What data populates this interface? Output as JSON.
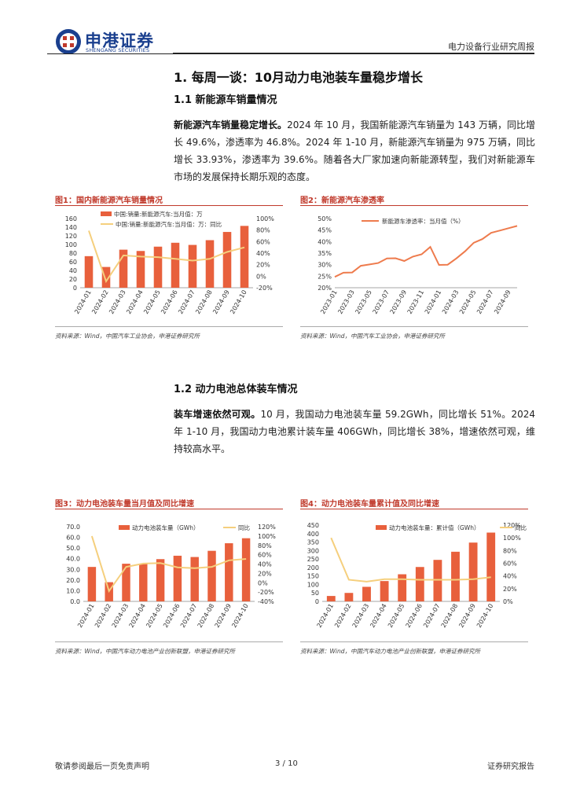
{
  "header": {
    "logo_cn": "申港证券",
    "logo_en": "SHENGANG SECURITIES",
    "report_type": "电力设备行业研究周报"
  },
  "section": {
    "title": "1. 每周一谈：10月动力电池装车量稳步增长",
    "sub1_title": "1.1 新能源车销量情况",
    "sub1_lead": "新能源汽车销量稳定增长。",
    "sub1_body": "2024 年 10 月，我国新能源汽车销量为 143 万辆，同比增长 49.6%，渗透率为 46.8%。2024 年 1-10 月，新能源汽车销量为 975 万辆，同比增长 33.93%，渗透率为 39.6%。随着各大厂家加速向新能源转型，我们对新能源车市场的发展保持长期乐观的态度。",
    "sub2_title": "1.2 动力电池总体装车情况",
    "sub2_lead": "装车增速依然可观。",
    "sub2_body": "10 月，我国动力电池装车量 59.2GWh，同比增长 51%。2024 年 1-10 月，我国动力电池累计装车量 406GWh，同比增长 38%，增速依然可观，维持较高水平。"
  },
  "figures": {
    "fig1": {
      "caption": "图1：国内新能源汽车销量情况",
      "source": "资料来源：Wind，中国汽车工业协会，申港证券研究所"
    },
    "fig2": {
      "caption": "图2：新能源汽车渗透率",
      "source": "资料来源：Wind，中国汽车工业协会，申港证券研究所"
    },
    "fig3": {
      "caption": "图3：动力电池装车量当月值及同比增速",
      "source": "资料来源：Wind，中国汽车动力电池产业创新联盟，申港证券研究所"
    },
    "fig4": {
      "caption": "图4：动力电池装车量累计值及同比增速",
      "source": "资料来源：Wind，中国汽车动力电池产业创新联盟，申港证券研究所"
    }
  },
  "footer": {
    "disclaimer": "敬请参阅最后一页免责声明",
    "page": "3 / 10",
    "doc_type": "证券研究报告"
  },
  "colors": {
    "bar": "#e8603c",
    "line_yellow": "#f5cf7d",
    "line_orange": "#ee7b4d",
    "caption_red": "#c0392b",
    "brand_blue": "#1a3f8e"
  },
  "chart_data": [
    {
      "type": "bar",
      "id": "fig1",
      "categories": [
        "2024-01",
        "2024-02",
        "2024-03",
        "2024-04",
        "2024-05",
        "2024-06",
        "2024-07",
        "2024-08",
        "2024-09",
        "2024-10"
      ],
      "series": [
        {
          "name": "中国:销量:新能源汽车:当月值：万",
          "kind": "bar",
          "axis": "left",
          "values": [
            73,
            48,
            88,
            85,
            95,
            104,
            99,
            110,
            129,
            143
          ]
        },
        {
          "name": "中国:销量:新能源汽车:当月值：万：同比",
          "kind": "line",
          "axis": "right",
          "values": [
            0.79,
            -0.09,
            0.36,
            0.34,
            0.33,
            0.3,
            0.27,
            0.3,
            0.42,
            0.5
          ]
        }
      ],
      "left_ylim": [
        0,
        160
      ],
      "left_ticks": [
        0,
        20,
        40,
        60,
        80,
        100,
        120,
        140,
        160
      ],
      "right_ylim": [
        -0.2,
        1.0
      ],
      "right_ticks": [
        "-20%",
        "0%",
        "20%",
        "40%",
        "60%",
        "80%",
        "100%"
      ]
    },
    {
      "type": "line",
      "id": "fig2",
      "x": [
        "2023-01",
        "2023-02",
        "2023-03",
        "2023-04",
        "2023-05",
        "2023-06",
        "2023-07",
        "2023-08",
        "2023-09",
        "2023-10",
        "2023-11",
        "2023-12",
        "2024-01",
        "2024-02",
        "2024-03",
        "2024-04",
        "2024-05",
        "2024-06",
        "2024-07",
        "2024-08",
        "2024-09",
        "2024-10"
      ],
      "x_ticks": [
        "2023-01",
        "2023-03",
        "2023-05",
        "2023-07",
        "2023-09",
        "2023-11",
        "2024-01",
        "2024-03",
        "2024-05",
        "2024-07",
        "2024-09"
      ],
      "series": [
        {
          "name": "新能源车渗透率：当月值（%）",
          "values": [
            24.7,
            26.5,
            26.6,
            29.5,
            30.1,
            30.7,
            32.7,
            32.8,
            31.6,
            33.5,
            34.5,
            37.7,
            29.9,
            30.0,
            32.7,
            35.8,
            39.5,
            41.1,
            43.8,
            44.8,
            45.8,
            46.8
          ]
        }
      ],
      "ylim": [
        0.2,
        0.5
      ],
      "y_ticks": [
        "20%",
        "25%",
        "30%",
        "35%",
        "40%",
        "45%",
        "50%"
      ]
    },
    {
      "type": "bar",
      "id": "fig3",
      "categories": [
        "2024-01",
        "2024-02",
        "2024-03",
        "2024-04",
        "2024-05",
        "2024-06",
        "2024-07",
        "2024-08",
        "2024-09",
        "2024-10"
      ],
      "series": [
        {
          "name": "动力电池装车量（GWh）",
          "kind": "bar",
          "axis": "left",
          "values": [
            32.3,
            18.0,
            35.3,
            35.0,
            39.6,
            42.8,
            41.6,
            47.4,
            54.5,
            59.2
          ]
        },
        {
          "name": "同比",
          "kind": "line",
          "axis": "right",
          "values": [
            1.0,
            -0.18,
            0.34,
            0.41,
            0.42,
            0.33,
            0.31,
            0.34,
            0.48,
            0.51
          ]
        }
      ],
      "left_ylim": [
        0,
        70
      ],
      "left_ticks": [
        "0.0",
        "10.0",
        "20.0",
        "30.0",
        "40.0",
        "50.0",
        "60.0",
        "70.0"
      ],
      "right_ylim": [
        -0.4,
        1.2
      ],
      "right_ticks": [
        "-40%",
        "-20%",
        "0%",
        "20%",
        "40%",
        "60%",
        "80%",
        "100%",
        "120%"
      ]
    },
    {
      "type": "bar",
      "id": "fig4",
      "categories": [
        "2024-01",
        "2024-02",
        "2024-03",
        "2024-04",
        "2024-05",
        "2024-06",
        "2024-07",
        "2024-08",
        "2024-09",
        "2024-10"
      ],
      "series": [
        {
          "name": "动力电池装车量：累计值（GWh）",
          "kind": "bar",
          "axis": "left",
          "values": [
            32,
            50,
            86,
            120,
            160,
            203,
            245,
            293,
            347,
            406
          ]
        },
        {
          "name": "同比",
          "kind": "line",
          "axis": "right",
          "values": [
            1.0,
            0.34,
            0.31,
            0.35,
            0.35,
            0.34,
            0.34,
            0.34,
            0.35,
            0.38
          ]
        }
      ],
      "left_ylim": [
        0,
        450
      ],
      "left_ticks": [
        0,
        50,
        100,
        150,
        200,
        250,
        300,
        350,
        400,
        450
      ],
      "right_ylim": [
        0,
        1.2
      ],
      "right_ticks": [
        "0%",
        "20%",
        "40%",
        "60%",
        "80%",
        "100%",
        "120%"
      ]
    }
  ]
}
